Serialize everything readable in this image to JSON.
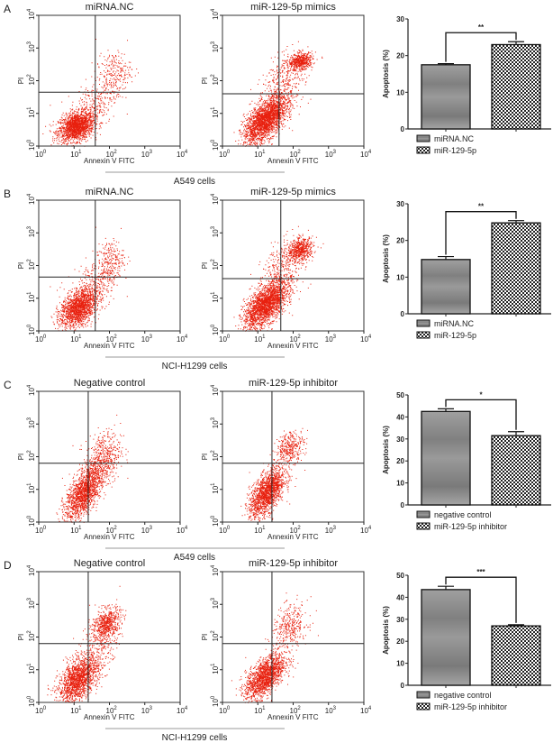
{
  "chart_data": [
    {
      "panel": "A",
      "cell_line": "A549 cells",
      "flow": [
        {
          "title": "miRNA.NC",
          "type": "scatter",
          "xlabel": "Annexin V FITC",
          "ylabel": "PI",
          "gate": [
            1.6,
            1.65
          ],
          "clusters": [
            {
              "cx": 1.05,
              "cy": 0.6,
              "sx": 0.25,
              "sy": 0.22,
              "rho": 0.3,
              "n": 1600
            },
            {
              "cx": 1.5,
              "cy": 1.2,
              "sx": 0.35,
              "sy": 0.45,
              "rho": 0.5,
              "n": 300
            },
            {
              "cx": 2.1,
              "cy": 2.2,
              "sx": 0.25,
              "sy": 0.35,
              "rho": 0.2,
              "n": 250
            }
          ]
        },
        {
          "title": "miR-129-5p mimics",
          "type": "scatter",
          "xlabel": "Annexin V FITC",
          "ylabel": "PI",
          "gate": [
            1.6,
            1.6
          ],
          "clusters": [
            {
              "cx": 1.2,
              "cy": 0.8,
              "sx": 0.3,
              "sy": 0.35,
              "rho": 0.6,
              "n": 2200
            },
            {
              "cx": 2.2,
              "cy": 2.6,
              "sx": 0.17,
              "sy": 0.13,
              "rho": 0.2,
              "n": 550
            },
            {
              "cx": 1.7,
              "cy": 1.8,
              "sx": 0.3,
              "sy": 0.5,
              "rho": 0.4,
              "n": 400
            }
          ]
        }
      ],
      "bar": {
        "type": "bar",
        "ylabel": "Apoptosis (%)",
        "ylim": [
          0,
          30
        ],
        "yticks": [
          0,
          10,
          20,
          30
        ],
        "categories": [
          "miRNA.NC",
          "miR-129-5p"
        ],
        "values": [
          17.5,
          23.0
        ],
        "errors": [
          0.3,
          0.8
        ],
        "significance": "**"
      }
    },
    {
      "panel": "B",
      "cell_line": "NCI-H1299 cells",
      "flow": [
        {
          "title": "miRNA.NC",
          "type": "scatter",
          "xlabel": "Annexin V FITC",
          "ylabel": "PI",
          "gate": [
            1.6,
            1.65
          ],
          "clusters": [
            {
              "cx": 1.1,
              "cy": 0.7,
              "sx": 0.25,
              "sy": 0.28,
              "rho": 0.4,
              "n": 1500
            },
            {
              "cx": 1.5,
              "cy": 1.3,
              "sx": 0.35,
              "sy": 0.5,
              "rho": 0.5,
              "n": 350
            },
            {
              "cx": 2.0,
              "cy": 2.1,
              "sx": 0.2,
              "sy": 0.35,
              "rho": 0.2,
              "n": 250
            }
          ]
        },
        {
          "title": "miR-129-5p mimics",
          "type": "scatter",
          "xlabel": "Annexin V FITC",
          "ylabel": "PI",
          "gate": [
            1.65,
            1.6
          ],
          "clusters": [
            {
              "cx": 1.2,
              "cy": 0.8,
              "sx": 0.3,
              "sy": 0.35,
              "rho": 0.6,
              "n": 2100
            },
            {
              "cx": 2.2,
              "cy": 2.5,
              "sx": 0.18,
              "sy": 0.17,
              "rho": 0.2,
              "n": 550
            },
            {
              "cx": 1.7,
              "cy": 1.8,
              "sx": 0.3,
              "sy": 0.5,
              "rho": 0.4,
              "n": 400
            }
          ]
        }
      ],
      "bar": {
        "type": "bar",
        "ylabel": "Apoptosis (%)",
        "ylim": [
          0,
          30
        ],
        "yticks": [
          0,
          10,
          20,
          30
        ],
        "categories": [
          "miRNA.NC",
          "miR-129-5p"
        ],
        "values": [
          14.8,
          24.8
        ],
        "errors": [
          0.8,
          0.6
        ],
        "significance": "**"
      }
    },
    {
      "panel": "C",
      "cell_line": "A549 cells",
      "flow": [
        {
          "title": "Negative control",
          "type": "scatter",
          "xlabel": "Annexin V  FITC",
          "ylabel": "PI",
          "gate": [
            1.4,
            1.8
          ],
          "clusters": [
            {
              "cx": 1.25,
              "cy": 0.9,
              "sx": 0.25,
              "sy": 0.4,
              "rho": 0.6,
              "n": 1500
            },
            {
              "cx": 1.8,
              "cy": 1.9,
              "sx": 0.25,
              "sy": 0.45,
              "rho": 0.3,
              "n": 550
            }
          ]
        },
        {
          "title": "miR-129-5p inhibitor",
          "type": "scatter",
          "xlabel": "Annexin V  FITC",
          "ylabel": "PI",
          "gate": [
            1.4,
            1.8
          ],
          "clusters": [
            {
              "cx": 1.25,
              "cy": 0.9,
              "sx": 0.25,
              "sy": 0.38,
              "rho": 0.6,
              "n": 1600
            },
            {
              "cx": 1.9,
              "cy": 2.3,
              "sx": 0.2,
              "sy": 0.25,
              "rho": 0.3,
              "n": 350
            }
          ]
        }
      ],
      "bar": {
        "type": "bar",
        "ylabel": "Apoptosis (%)",
        "ylim": [
          0,
          50
        ],
        "yticks": [
          0,
          10,
          20,
          30,
          40,
          50
        ],
        "categories": [
          "negative control",
          "miR-129-5p inhibitor"
        ],
        "values": [
          42.5,
          31.5
        ],
        "errors": [
          1.2,
          1.8
        ],
        "significance": "*"
      }
    },
    {
      "panel": "D",
      "cell_line": "NCI-H1299 cells",
      "flow": [
        {
          "title": "Negative control",
          "type": "scatter",
          "xlabel": "Annexin V  FITC",
          "ylabel": "PI",
          "gate": [
            1.4,
            1.8
          ],
          "clusters": [
            {
              "cx": 1.1,
              "cy": 0.7,
              "sx": 0.28,
              "sy": 0.35,
              "rho": 0.5,
              "n": 1500
            },
            {
              "cx": 1.9,
              "cy": 2.4,
              "sx": 0.2,
              "sy": 0.25,
              "rho": 0.3,
              "n": 600
            },
            {
              "cx": 1.6,
              "cy": 1.5,
              "sx": 0.3,
              "sy": 0.5,
              "rho": 0.5,
              "n": 300
            }
          ]
        },
        {
          "title": "miR-129-5p inhibitor",
          "type": "scatter",
          "xlabel": "Annexin V  FITC",
          "ylabel": "PI",
          "gate": [
            1.4,
            1.8
          ],
          "clusters": [
            {
              "cx": 1.2,
              "cy": 0.8,
              "sx": 0.28,
              "sy": 0.35,
              "rho": 0.6,
              "n": 1600
            },
            {
              "cx": 1.9,
              "cy": 2.3,
              "sx": 0.25,
              "sy": 0.35,
              "rho": 0.3,
              "n": 350
            }
          ]
        }
      ],
      "bar": {
        "type": "bar",
        "ylabel": "Apoptosis (%)",
        "ylim": [
          0,
          50
        ],
        "yticks": [
          0,
          10,
          20,
          30,
          40,
          50
        ],
        "categories": [
          "negative control",
          "miR-129-5p inhibitor"
        ],
        "values": [
          43.5,
          27.0
        ],
        "errors": [
          1.5,
          0.5
        ],
        "significance": "***"
      }
    }
  ],
  "axis": {
    "xticks": [
      "0",
      "1",
      "2",
      "3",
      "4"
    ],
    "tick_base": "10"
  },
  "colors": {
    "dots": "#e8200e",
    "axis": "#222222",
    "bar1": "#8a8a8a",
    "bar2": "#222222"
  }
}
